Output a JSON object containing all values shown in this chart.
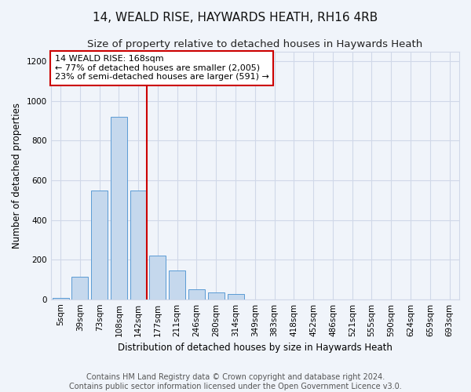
{
  "title": "14, WEALD RISE, HAYWARDS HEATH, RH16 4RB",
  "subtitle": "Size of property relative to detached houses in Haywards Heath",
  "xlabel": "Distribution of detached houses by size in Haywards Heath",
  "ylabel": "Number of detached properties",
  "footer_line1": "Contains HM Land Registry data © Crown copyright and database right 2024.",
  "footer_line2": "Contains public sector information licensed under the Open Government Licence v3.0.",
  "bar_labels": [
    "5sqm",
    "39sqm",
    "73sqm",
    "108sqm",
    "142sqm",
    "177sqm",
    "211sqm",
    "246sqm",
    "280sqm",
    "314sqm",
    "349sqm",
    "383sqm",
    "418sqm",
    "452sqm",
    "486sqm",
    "521sqm",
    "555sqm",
    "590sqm",
    "624sqm",
    "659sqm",
    "693sqm"
  ],
  "bar_values": [
    8,
    115,
    550,
    920,
    548,
    220,
    145,
    52,
    33,
    25,
    0,
    0,
    0,
    0,
    0,
    0,
    0,
    0,
    0,
    0,
    0
  ],
  "bar_color": "#c5d8ed",
  "bar_edgecolor": "#5b9bd5",
  "highlight_line_color": "#cc0000",
  "annotation_text": "14 WEALD RISE: 168sqm\n← 77% of detached houses are smaller (2,005)\n23% of semi-detached houses are larger (591) →",
  "annotation_box_edgecolor": "#cc0000",
  "annotation_box_facecolor": "#ffffff",
  "ylim": [
    0,
    1250
  ],
  "yticks": [
    0,
    200,
    400,
    600,
    800,
    1000,
    1200
  ],
  "grid_color": "#d0d8e8",
  "background_color": "#f0f4fa",
  "title_fontsize": 11,
  "subtitle_fontsize": 9.5,
  "axis_label_fontsize": 8.5,
  "tick_fontsize": 7.5,
  "annotation_fontsize": 8,
  "footer_fontsize": 7
}
